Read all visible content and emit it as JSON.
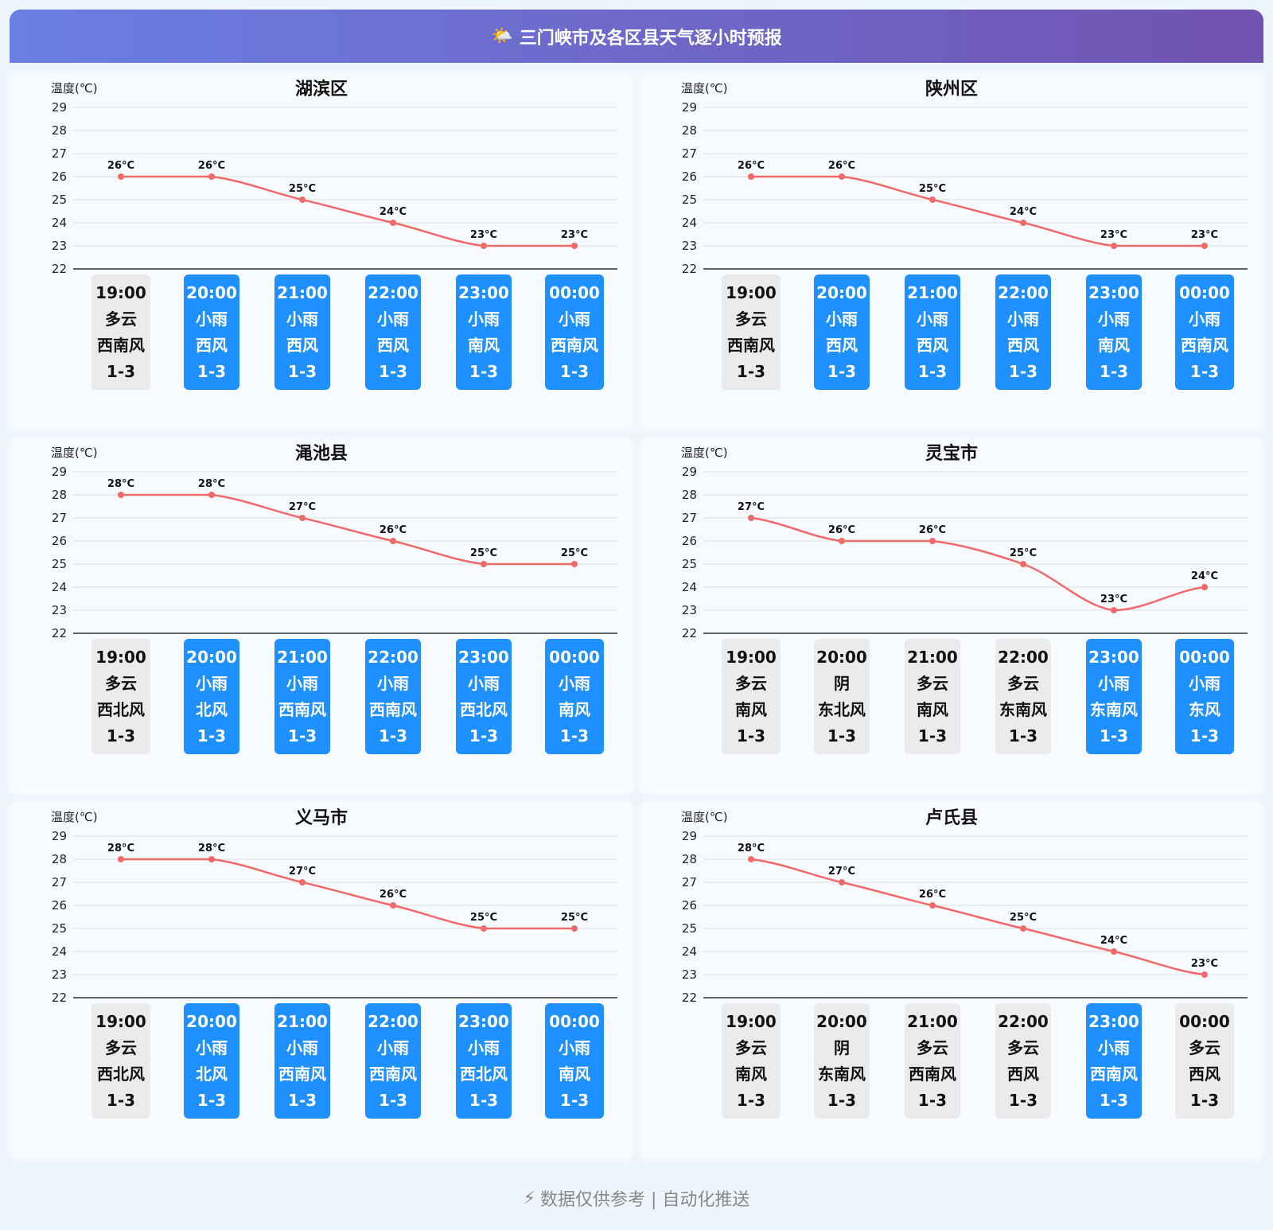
{
  "header": {
    "title": "三门峡市及各区县天气逐小时预报",
    "icon": "sun-behind-cloud-icon"
  },
  "footer": {
    "text": "数据仅供参考 | 自动化推送",
    "icon": "lightning-icon"
  },
  "colors": {
    "line": "#f06a6a",
    "rain_tile": "#1e90ff",
    "other_tile": "#ebebeb"
  },
  "chart_data": [
    {
      "type": "line",
      "title": "湖滨区",
      "ylabel": "温度(℃)",
      "ylim": [
        22,
        29
      ],
      "categories": [
        "19:00",
        "20:00",
        "21:00",
        "22:00",
        "23:00",
        "00:00"
      ],
      "values": [
        26,
        26,
        25,
        24,
        23,
        23
      ],
      "labels": [
        "26°C",
        "26°C",
        "25°C",
        "24°C",
        "23°C",
        "23°C"
      ],
      "weather": [
        "多云",
        "小雨",
        "小雨",
        "小雨",
        "小雨",
        "小雨"
      ],
      "wind": [
        "西南风",
        "西风",
        "西风",
        "西风",
        "南风",
        "西南风"
      ],
      "wind_level": [
        "1-3",
        "1-3",
        "1-3",
        "1-3",
        "1-3",
        "1-3"
      ]
    },
    {
      "type": "line",
      "title": "陕州区",
      "ylabel": "温度(℃)",
      "ylim": [
        22,
        29
      ],
      "categories": [
        "19:00",
        "20:00",
        "21:00",
        "22:00",
        "23:00",
        "00:00"
      ],
      "values": [
        26,
        26,
        25,
        24,
        23,
        23
      ],
      "labels": [
        "26°C",
        "26°C",
        "25°C",
        "24°C",
        "23°C",
        "23°C"
      ],
      "weather": [
        "多云",
        "小雨",
        "小雨",
        "小雨",
        "小雨",
        "小雨"
      ],
      "wind": [
        "西南风",
        "西风",
        "西风",
        "西风",
        "南风",
        "西南风"
      ],
      "wind_level": [
        "1-3",
        "1-3",
        "1-3",
        "1-3",
        "1-3",
        "1-3"
      ]
    },
    {
      "type": "line",
      "title": "渑池县",
      "ylabel": "温度(℃)",
      "ylim": [
        22,
        29
      ],
      "categories": [
        "19:00",
        "20:00",
        "21:00",
        "22:00",
        "23:00",
        "00:00"
      ],
      "values": [
        28,
        28,
        27,
        26,
        25,
        25
      ],
      "labels": [
        "28°C",
        "28°C",
        "27°C",
        "26°C",
        "25°C",
        "25°C"
      ],
      "weather": [
        "多云",
        "小雨",
        "小雨",
        "小雨",
        "小雨",
        "小雨"
      ],
      "wind": [
        "西北风",
        "北风",
        "西南风",
        "西南风",
        "西北风",
        "南风"
      ],
      "wind_level": [
        "1-3",
        "1-3",
        "1-3",
        "1-3",
        "1-3",
        "1-3"
      ]
    },
    {
      "type": "line",
      "title": "灵宝市",
      "ylabel": "温度(℃)",
      "ylim": [
        22,
        29
      ],
      "categories": [
        "19:00",
        "20:00",
        "21:00",
        "22:00",
        "23:00",
        "00:00"
      ],
      "values": [
        27,
        26,
        26,
        25,
        23,
        24
      ],
      "labels": [
        "27°C",
        "26°C",
        "26°C",
        "25°C",
        "23°C",
        "24°C"
      ],
      "weather": [
        "多云",
        "阴",
        "多云",
        "多云",
        "小雨",
        "小雨"
      ],
      "wind": [
        "南风",
        "东北风",
        "南风",
        "东南风",
        "东南风",
        "东风"
      ],
      "wind_level": [
        "1-3",
        "1-3",
        "1-3",
        "1-3",
        "1-3",
        "1-3"
      ]
    },
    {
      "type": "line",
      "title": "义马市",
      "ylabel": "温度(℃)",
      "ylim": [
        22,
        29
      ],
      "categories": [
        "19:00",
        "20:00",
        "21:00",
        "22:00",
        "23:00",
        "00:00"
      ],
      "values": [
        28,
        28,
        27,
        26,
        25,
        25
      ],
      "labels": [
        "28°C",
        "28°C",
        "27°C",
        "26°C",
        "25°C",
        "25°C"
      ],
      "weather": [
        "多云",
        "小雨",
        "小雨",
        "小雨",
        "小雨",
        "小雨"
      ],
      "wind": [
        "西北风",
        "北风",
        "西南风",
        "西南风",
        "西北风",
        "南风"
      ],
      "wind_level": [
        "1-3",
        "1-3",
        "1-3",
        "1-3",
        "1-3",
        "1-3"
      ]
    },
    {
      "type": "line",
      "title": "卢氏县",
      "ylabel": "温度(℃)",
      "ylim": [
        22,
        29
      ],
      "categories": [
        "19:00",
        "20:00",
        "21:00",
        "22:00",
        "23:00",
        "00:00"
      ],
      "values": [
        28,
        27,
        26,
        25,
        24,
        23
      ],
      "labels": [
        "28°C",
        "27°C",
        "26°C",
        "25°C",
        "24°C",
        "23°C"
      ],
      "weather": [
        "多云",
        "阴",
        "多云",
        "多云",
        "小雨",
        "多云"
      ],
      "wind": [
        "南风",
        "东南风",
        "西南风",
        "西风",
        "西南风",
        "西风"
      ],
      "wind_level": [
        "1-3",
        "1-3",
        "1-3",
        "1-3",
        "1-3",
        "1-3"
      ]
    }
  ]
}
